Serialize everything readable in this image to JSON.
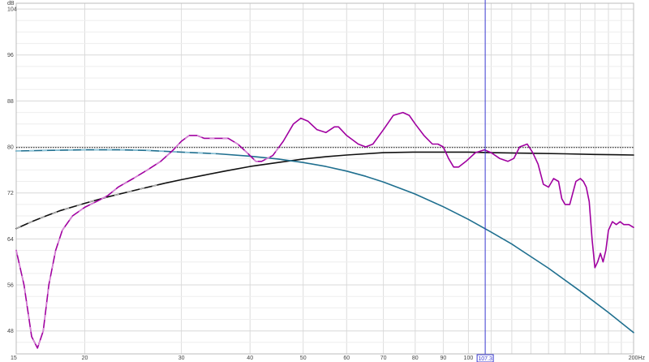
{
  "chart_data": {
    "type": "line",
    "title": "",
    "xlabel": "",
    "ylabel": "",
    "x_scale": "log",
    "xlim": [
      15,
      200
    ],
    "ylim": [
      44,
      105
    ],
    "y_unit_label": "dB",
    "x_unit_label": "200Hz",
    "grid": true,
    "x_ticks": [
      {
        "value": 15,
        "label": "15"
      },
      {
        "value": 20,
        "label": "20"
      },
      {
        "value": 30,
        "label": "30"
      },
      {
        "value": 40,
        "label": "40"
      },
      {
        "value": 50,
        "label": "50"
      },
      {
        "value": 60,
        "label": "60"
      },
      {
        "value": 70,
        "label": "70"
      },
      {
        "value": 80,
        "label": "80"
      },
      {
        "value": 90,
        "label": "90"
      },
      {
        "value": 100,
        "label": "100"
      },
      {
        "value": 200,
        "label": "200Hz"
      }
    ],
    "y_ticks": [
      {
        "value": 104,
        "label": "104"
      },
      {
        "value": 96,
        "label": "96"
      },
      {
        "value": 88,
        "label": "88"
      },
      {
        "value": 80,
        "label": "80"
      },
      {
        "value": 72,
        "label": "72"
      },
      {
        "value": 64,
        "label": "64"
      },
      {
        "value": 56,
        "label": "56"
      },
      {
        "value": 48,
        "label": "48"
      }
    ],
    "cursor": {
      "x": 107.3,
      "label": "107.3",
      "color": "#3a3ad0"
    },
    "series": [
      {
        "color": "#a000a0",
        "highlight_color": "#e0a0e0",
        "x": [
          15,
          15.5,
          16,
          16.4,
          16.8,
          17.2,
          17.7,
          18.2,
          19,
          20,
          21,
          22,
          23,
          24.5,
          26,
          27.5,
          29,
          30,
          31,
          32,
          33,
          35,
          36.5,
          38,
          39.5,
          41,
          42,
          44,
          46,
          48,
          49.5,
          51,
          53,
          55,
          57,
          58,
          60,
          63,
          65,
          67,
          70,
          73,
          76,
          78,
          80,
          83,
          86,
          88,
          90,
          92,
          94,
          96,
          99,
          103,
          107,
          110,
          114,
          118,
          121,
          124,
          128,
          131,
          134,
          137,
          140,
          143,
          146,
          148,
          150,
          153,
          157,
          160,
          162,
          164,
          166,
          168,
          170,
          172,
          174,
          176,
          178,
          180,
          183,
          186,
          189,
          192,
          196,
          200
        ],
        "y": [
          62,
          56,
          47,
          45,
          48,
          56,
          62,
          65.5,
          68,
          69.5,
          70.5,
          71.5,
          73,
          74.5,
          76,
          77.5,
          79.5,
          81,
          82,
          82,
          81.5,
          81.5,
          81.5,
          80.5,
          79,
          77.5,
          77.5,
          78.5,
          81,
          84,
          85,
          84.5,
          83,
          82.5,
          83.5,
          83.5,
          82,
          80.5,
          80,
          80.5,
          83,
          85.5,
          86,
          85.5,
          84,
          82,
          80.5,
          80.5,
          80,
          78,
          76.5,
          76.5,
          77.5,
          79,
          79.5,
          79,
          78,
          77.5,
          78,
          80,
          80.5,
          79,
          77,
          73.5,
          73,
          74.5,
          74,
          71,
          70,
          70,
          74,
          74.5,
          74,
          73,
          70.5,
          64,
          59,
          60,
          61.5,
          60,
          62,
          65.5,
          67,
          66.5,
          67,
          66.5,
          66.5,
          66
        ]
      },
      {
        "color": "#1f6f8f",
        "highlight_color": "#9ed6ea",
        "x": [
          15,
          17,
          20,
          23,
          26,
          30,
          35,
          40,
          45,
          50,
          55,
          60,
          65,
          70,
          80,
          90,
          100,
          110,
          120,
          140,
          160,
          180,
          200
        ],
        "y": [
          79.3,
          79.4,
          79.5,
          79.5,
          79.4,
          79.1,
          78.8,
          78.4,
          77.9,
          77.3,
          76.6,
          75.8,
          74.9,
          73.9,
          71.8,
          69.6,
          67.4,
          65.2,
          63.1,
          58.9,
          54.9,
          51.2,
          47.7
        ]
      },
      {
        "color": "#111111",
        "highlight_color": "#cccccc",
        "x": [
          15,
          16,
          17,
          18,
          20,
          22,
          25,
          28,
          30,
          33,
          36,
          40,
          45,
          50,
          55,
          60,
          70,
          80,
          90,
          100,
          110,
          130,
          150,
          170,
          200
        ],
        "y": [
          65.8,
          67,
          68,
          68.9,
          70.2,
          71.3,
          72.6,
          73.7,
          74.3,
          75.1,
          75.8,
          76.6,
          77.3,
          77.9,
          78.3,
          78.6,
          79,
          79.1,
          79.1,
          79.1,
          79,
          78.9,
          78.8,
          78.7,
          78.6
        ]
      }
    ],
    "reference_line": {
      "y": 79.9,
      "color": "#111111"
    }
  }
}
